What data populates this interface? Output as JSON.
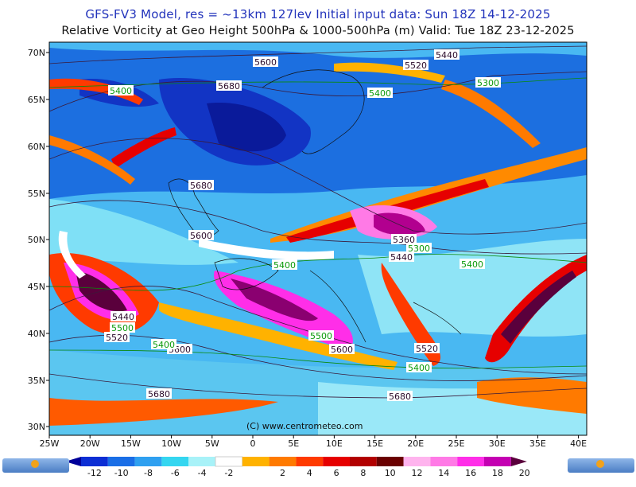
{
  "header": {
    "line1": "GFS-FV3 Model, res = ~13km 127lev    Initial input data: Sun 18Z 14-12-2025",
    "line2": "Relative Vorticity at Geo Height 500hPa & 1000-500hPa (m)   Valid: Tue 18Z 23-12-2025"
  },
  "map": {
    "lat_labels": [
      "70N",
      "65N",
      "60N",
      "55N",
      "50N",
      "45N",
      "40N",
      "35N",
      "30N"
    ],
    "lon_labels": [
      "25W",
      "20W",
      "15W",
      "10W",
      "5W",
      "0",
      "5E",
      "10E",
      "15E",
      "20E",
      "25E",
      "30E",
      "35E",
      "40E"
    ],
    "copyright": "(C) www.centrometeo.com"
  },
  "geopotential_labels_dark": [
    "5600",
    "5520",
    "5440",
    "5680",
    "5680",
    "5600",
    "5360",
    "5440",
    "5440",
    "5520",
    "5600",
    "5520",
    "5600",
    "5680",
    "5680"
  ],
  "geopotential_labels_green": [
    "5400",
    "5400",
    "5300",
    "5300",
    "5400",
    "5400",
    "5500",
    "5400",
    "5500",
    "5400"
  ],
  "legend": {
    "ticks": [
      "-12",
      "-10",
      "-8",
      "-6",
      "-4",
      "-2",
      "2",
      "4",
      "6",
      "8",
      "10",
      "12",
      "14",
      "16",
      "18",
      "20"
    ],
    "colors": [
      "#00009a",
      "#0c2ed4",
      "#1a6ee6",
      "#2fa0f0",
      "#34d6f0",
      "#a8f2f8",
      "#ffffff",
      "#ffb200",
      "#ff7a00",
      "#ff3a00",
      "#e60000",
      "#b20000",
      "#6a0000",
      "#ffb4ee",
      "#ff7ae6",
      "#ff2ee8",
      "#c400b2",
      "#5a003c"
    ],
    "logo_text": "centrometeo"
  }
}
